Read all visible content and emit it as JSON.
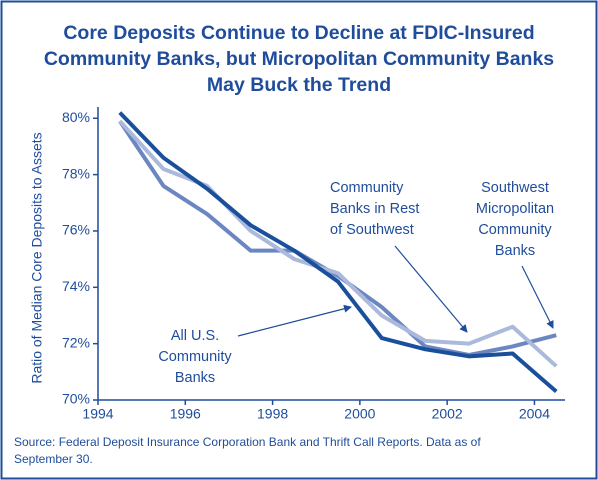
{
  "chart_data": {
    "type": "line",
    "title": [
      "Core Deposits Continue to Decline at FDIC-Insured",
      "Community  Banks, but Micropolitan Community Banks",
      "May Buck the Trend"
    ],
    "y_label": "Ratio of Median Core Deposits to Assets",
    "x": [
      1994.5,
      1995.5,
      1996.5,
      1997.5,
      1998.5,
      1999.5,
      2000.5,
      2001.5,
      2002.5,
      2003.5,
      2004.5
    ],
    "series": [
      {
        "name": [
          "Community",
          "Banks in Rest",
          "of Southwest"
        ],
        "color": "#6b86c0",
        "values": [
          79.9,
          77.6,
          76.6,
          75.3,
          75.3,
          74.4,
          73.3,
          71.9,
          71.6,
          71.9,
          72.3
        ]
      },
      {
        "name": [
          "Southwest",
          "Micropolitan",
          "Community",
          "Banks"
        ],
        "color": "#aab9dc",
        "values": [
          79.9,
          78.2,
          77.6,
          76.0,
          75.0,
          74.5,
          73.0,
          72.1,
          72.0,
          72.6,
          71.2
        ]
      },
      {
        "name": [
          "All U.S.",
          "Community",
          "Banks"
        ],
        "color": "#1a4f9c",
        "values": [
          80.2,
          78.6,
          77.5,
          76.2,
          75.3,
          74.2,
          72.2,
          71.8,
          71.55,
          71.65,
          70.3
        ]
      }
    ],
    "xlim": [
      1994,
      2004.7
    ],
    "xticks": [
      1994,
      1996,
      1998,
      2000,
      2002,
      2004
    ],
    "ylim": [
      70,
      80.4
    ],
    "yticks": [
      {
        "value": 70,
        "label": "70%"
      },
      {
        "value": 72,
        "label": "72%"
      },
      {
        "value": 74,
        "label": "74%"
      },
      {
        "value": 76,
        "label": "76%"
      },
      {
        "value": 78,
        "label": "78%"
      },
      {
        "value": 80,
        "label": "80%"
      }
    ],
    "source": [
      "Source: Federal Deposit Insurance Corporation Bank and Thrift Call Reports. Data as of",
      "September 30."
    ]
  }
}
